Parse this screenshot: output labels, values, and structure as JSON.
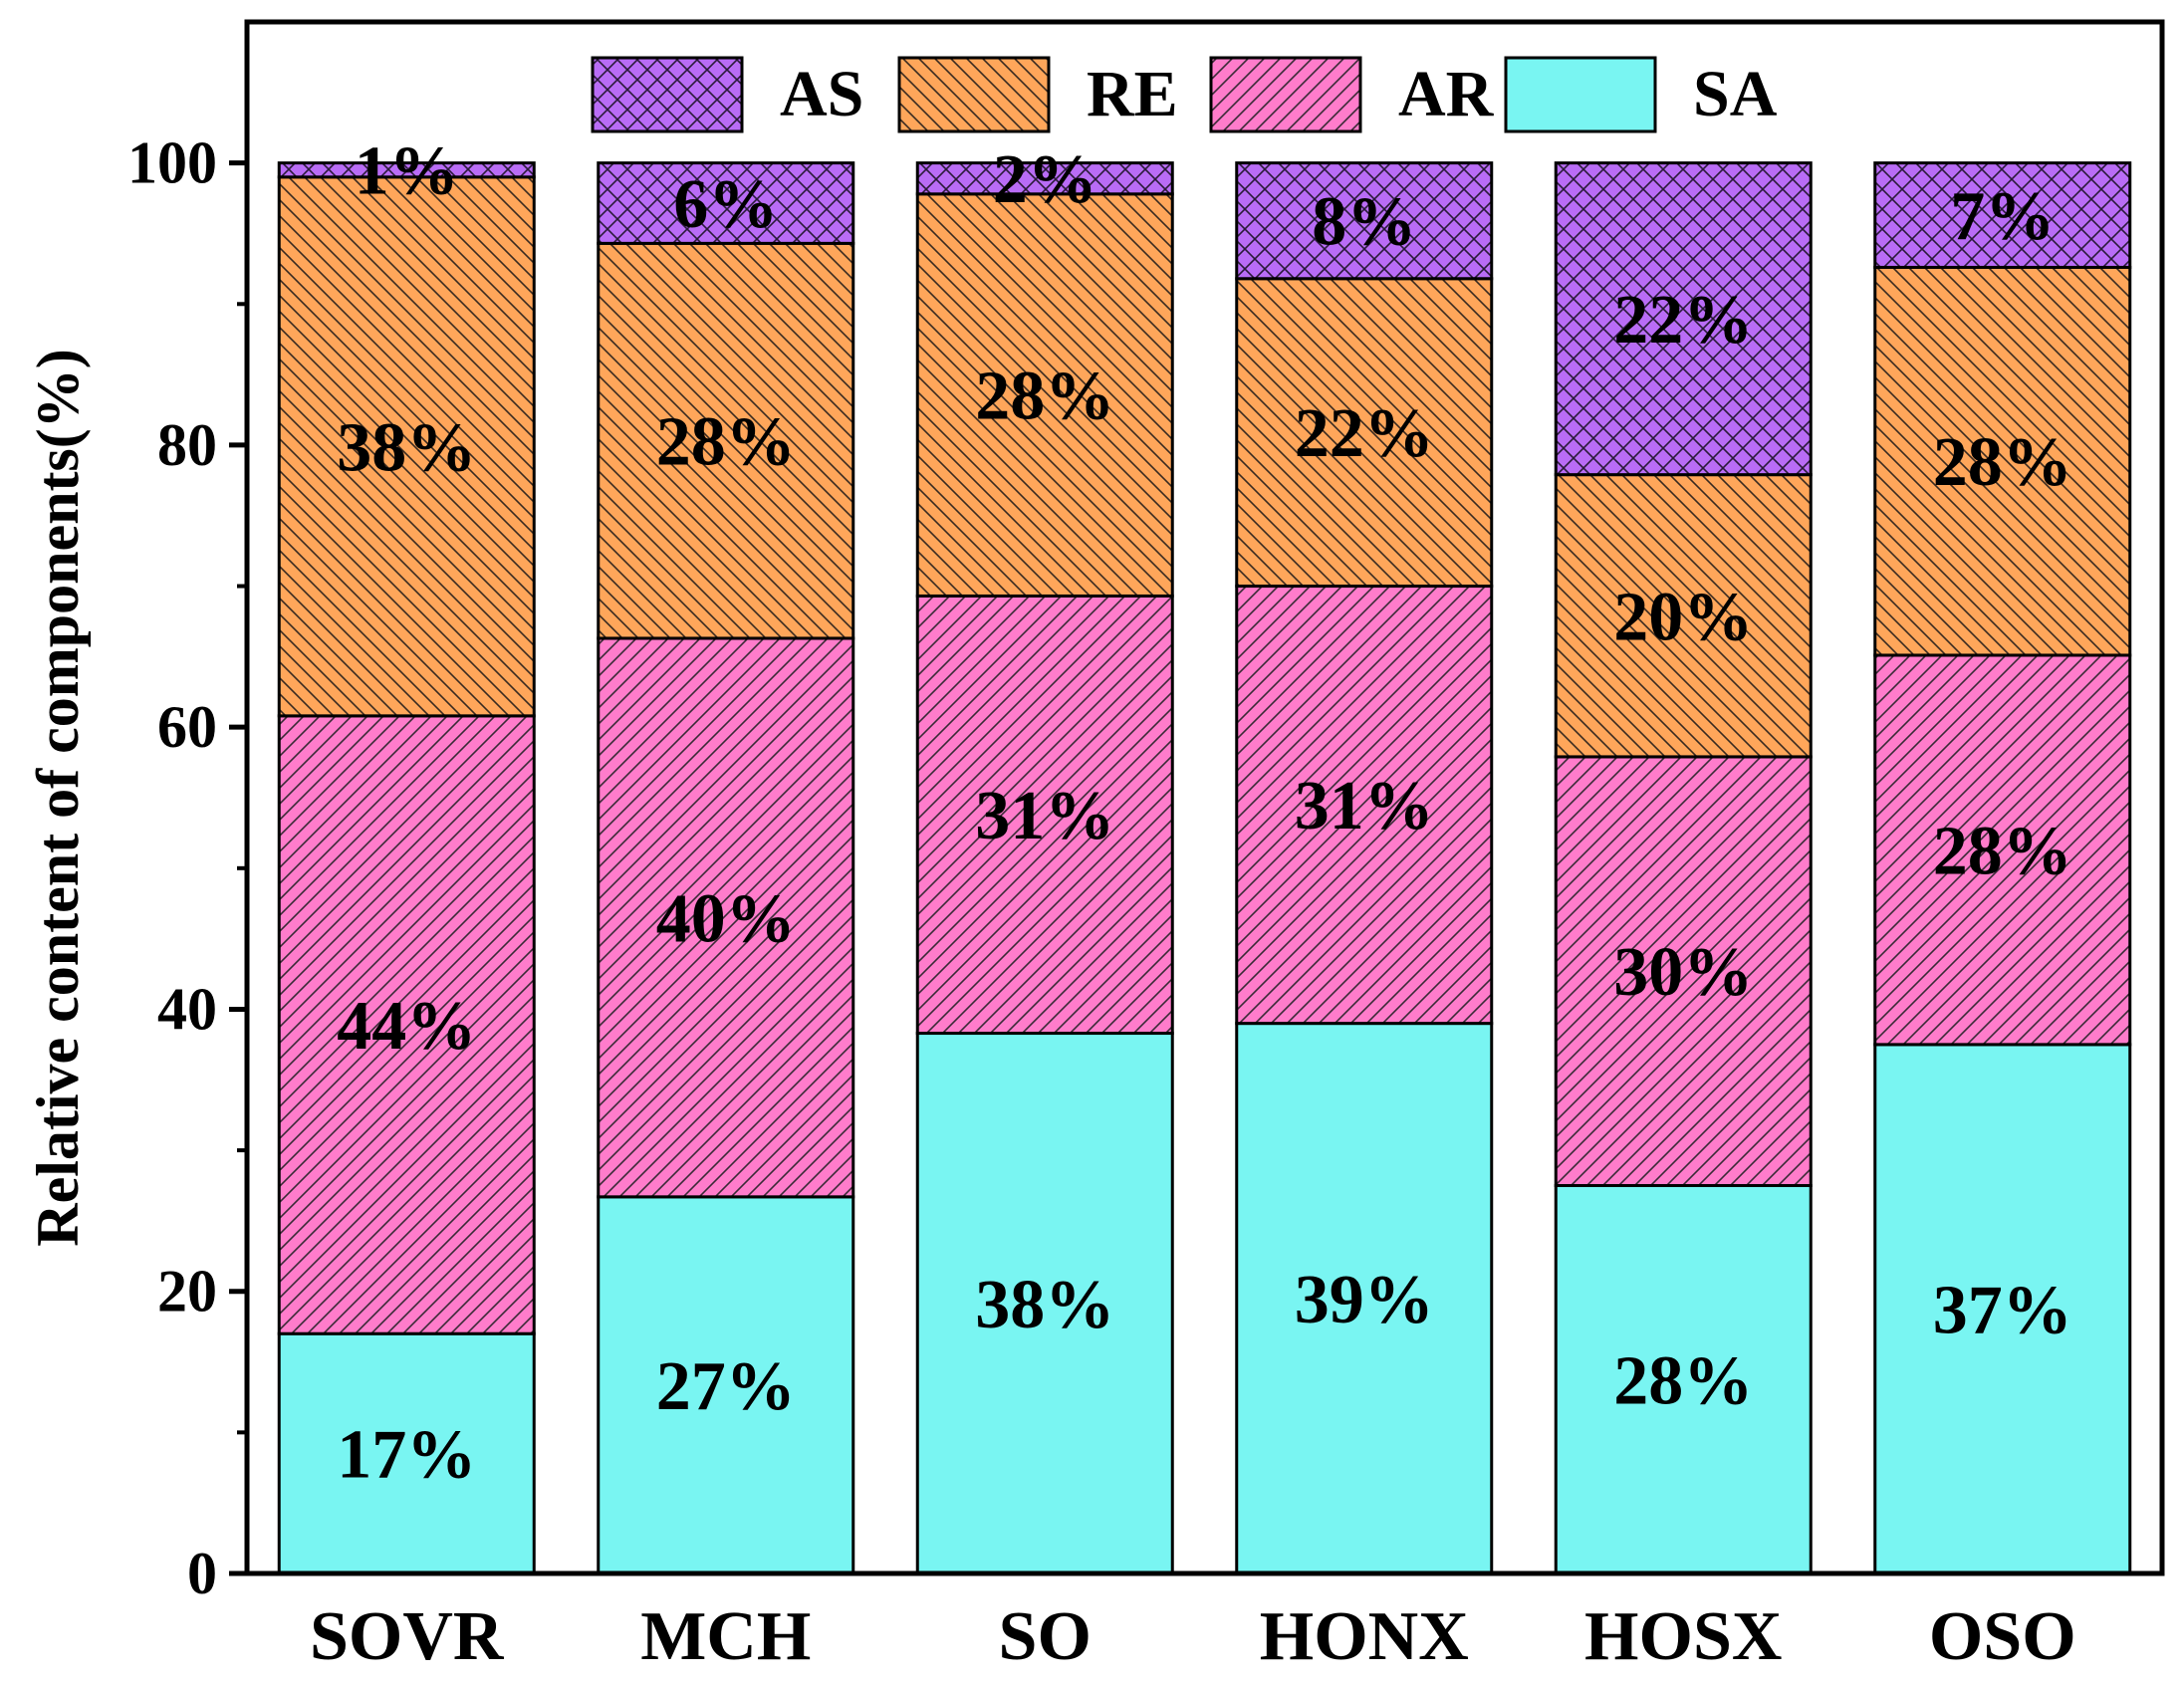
{
  "chart_data": {
    "type": "bar",
    "stacked": true,
    "categories": [
      "SOVR",
      "MCH",
      "SO",
      "HONX",
      "HOSX",
      "OSO"
    ],
    "ylabel": "Relative content of components(%)",
    "xlabel": "",
    "ylim": [
      0,
      110
    ],
    "yticks": [
      0,
      20,
      40,
      60,
      80,
      100
    ],
    "ytick_labels": [
      "0",
      "20",
      "40",
      "60",
      "80",
      "100"
    ],
    "grid": false,
    "legend_position": "top-center",
    "legend_order": [
      "AS",
      "RE",
      "AR",
      "SA"
    ],
    "series": [
      {
        "name": "SA",
        "color": "#79f5f2",
        "pattern": "none",
        "values": [
          17,
          26.7,
          38.3,
          39,
          27.5,
          37.5
        ],
        "labels": [
          "17%",
          "27%",
          "38%",
          "39%",
          "28%",
          "37%"
        ]
      },
      {
        "name": "AR",
        "color": "#ff7ccb",
        "pattern": "diagonal",
        "values": [
          43.8,
          39.6,
          31,
          31,
          30.4,
          27.6
        ],
        "labels": [
          "44%",
          "40%",
          "31%",
          "31%",
          "30%",
          "28%"
        ]
      },
      {
        "name": "RE",
        "color": "#ffa65a",
        "pattern": "back-diagonal",
        "values": [
          38.2,
          28,
          28.5,
          21.8,
          20,
          27.5
        ],
        "labels": [
          "38%",
          "28%",
          "28%",
          "22%",
          "20%",
          "28%"
        ]
      },
      {
        "name": "AS",
        "color": "#b96cf6",
        "pattern": "crosshatch",
        "values": [
          1,
          5.7,
          2.2,
          8.2,
          22.1,
          7.4
        ],
        "labels": [
          "1%",
          "6%",
          "2%",
          "8%",
          "22%",
          "7%"
        ]
      }
    ]
  }
}
